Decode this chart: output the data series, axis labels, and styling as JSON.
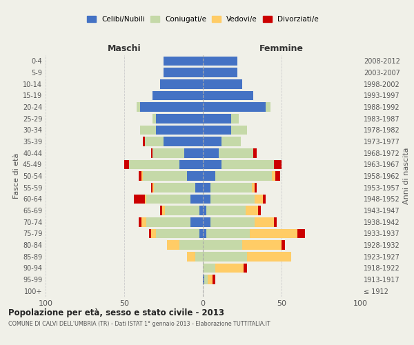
{
  "age_groups": [
    "100+",
    "95-99",
    "90-94",
    "85-89",
    "80-84",
    "75-79",
    "70-74",
    "65-69",
    "60-64",
    "55-59",
    "50-54",
    "45-49",
    "40-44",
    "35-39",
    "30-34",
    "25-29",
    "20-24",
    "15-19",
    "10-14",
    "5-9",
    "0-4"
  ],
  "birth_years": [
    "≤ 1912",
    "1913-1917",
    "1918-1922",
    "1923-1927",
    "1928-1932",
    "1933-1937",
    "1938-1942",
    "1943-1947",
    "1948-1952",
    "1953-1957",
    "1958-1962",
    "1963-1967",
    "1968-1972",
    "1973-1977",
    "1978-1982",
    "1983-1987",
    "1988-1992",
    "1993-1997",
    "1998-2002",
    "2003-2007",
    "2008-2012"
  ],
  "colors": {
    "celibi": "#4472C4",
    "coniugati": "#C5D9A8",
    "vedovi": "#FFCC66",
    "divorziati": "#CC0000"
  },
  "maschi": {
    "celibi": [
      0,
      0,
      0,
      0,
      0,
      2,
      8,
      2,
      8,
      5,
      10,
      15,
      12,
      25,
      30,
      30,
      40,
      32,
      27,
      25,
      25
    ],
    "coniugati": [
      0,
      0,
      0,
      5,
      15,
      28,
      28,
      22,
      28,
      26,
      28,
      32,
      20,
      12,
      10,
      2,
      2,
      0,
      0,
      0,
      0
    ],
    "vedovi": [
      0,
      0,
      0,
      5,
      8,
      3,
      3,
      2,
      1,
      1,
      1,
      0,
      0,
      0,
      0,
      0,
      0,
      0,
      0,
      0,
      0
    ],
    "divorziati": [
      0,
      0,
      0,
      0,
      0,
      1,
      2,
      1,
      7,
      1,
      2,
      3,
      1,
      1,
      0,
      0,
      0,
      0,
      0,
      0,
      0
    ]
  },
  "femmine": {
    "celibi": [
      0,
      1,
      0,
      0,
      0,
      2,
      5,
      2,
      5,
      5,
      8,
      12,
      10,
      12,
      18,
      18,
      40,
      32,
      25,
      22,
      22
    ],
    "coniugati": [
      0,
      2,
      8,
      28,
      25,
      28,
      28,
      25,
      28,
      26,
      36,
      33,
      22,
      12,
      10,
      5,
      3,
      0,
      0,
      0,
      0
    ],
    "vedovi": [
      0,
      3,
      18,
      28,
      25,
      30,
      12,
      8,
      5,
      2,
      2,
      0,
      0,
      0,
      0,
      0,
      0,
      0,
      0,
      0,
      0
    ],
    "divorziati": [
      0,
      2,
      2,
      0,
      2,
      5,
      2,
      2,
      2,
      1,
      3,
      5,
      2,
      0,
      0,
      0,
      0,
      0,
      0,
      0,
      0
    ]
  },
  "xlim": 100,
  "title": "Popolazione per età, sesso e stato civile - 2013",
  "subtitle": "COMUNE DI CALVI DELL'UMBRIA (TR) - Dati ISTAT 1° gennaio 2013 - Elaborazione TUTTITALIA.IT",
  "ylabel_left": "Fasce di età",
  "ylabel_right": "Anni di nascita",
  "xlabel_maschi": "Maschi",
  "xlabel_femmine": "Femmine",
  "bg_color": "#f0f0e8"
}
